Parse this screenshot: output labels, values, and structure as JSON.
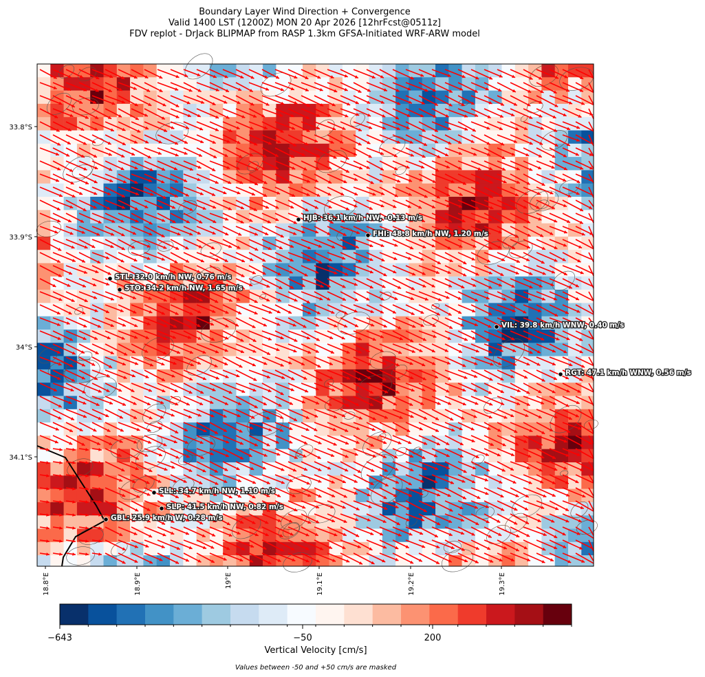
{
  "header": {
    "title_lines": [
      "Boundary Layer Wind Direction + Convergence",
      "Valid 1400 LST (1200Z) MON 20 Apr 2026 [12hrFcst@0511z]",
      "FDV replot - DrJack BLIPMAP from RASP 1.3km GFSA-Initiated WRF-ARW model"
    ]
  },
  "map": {
    "lat_labels": [
      "33.8°S",
      "33.9°S",
      "34°S",
      "34.1°S"
    ],
    "lon_labels": [
      "18.8°E",
      "18.9°E",
      "19°E",
      "19.1°E",
      "19.2°E",
      "19.3°E"
    ],
    "arrow_color": "#ff0000",
    "stations": [
      "HJB: 36.1 km/h NW, -0.13 m/s",
      "FHI: 48.8 km/h NW, 1.20 m/s",
      "STL: 32.0 km/h NW, 0.76 m/s",
      "STO: 34.2 km/h NW, 1.65 m/s",
      "VIL: 39.8 km/h WNW, 0.40 m/s",
      "RGT: 47.1 km/h WNW, 0.56 m/s",
      "SLL: 34.7 km/h NW, 1.10 m/s",
      "SLP: 41.5 km/h NW, 0.82 m/s",
      "GBL: 25.9 km/h W, 0.28 m/s"
    ]
  },
  "colorbar": {
    "colors": [
      "#08306b",
      "#08519c",
      "#2171b5",
      "#4292c6",
      "#6baed6",
      "#9ecae1",
      "#c6dbef",
      "#deebf7",
      "#f7fbff",
      "#fff5f0",
      "#fee0d2",
      "#fcbba1",
      "#fc9272",
      "#fb6a4a",
      "#ef3b2c",
      "#cb181d",
      "#a50f15",
      "#67000d"
    ],
    "tick_labels": [
      "−643",
      "−50",
      "200"
    ],
    "label": "Vertical Velocity [cm/s]"
  },
  "footnote": "Values between -50 and +50 cm/s are masked"
}
